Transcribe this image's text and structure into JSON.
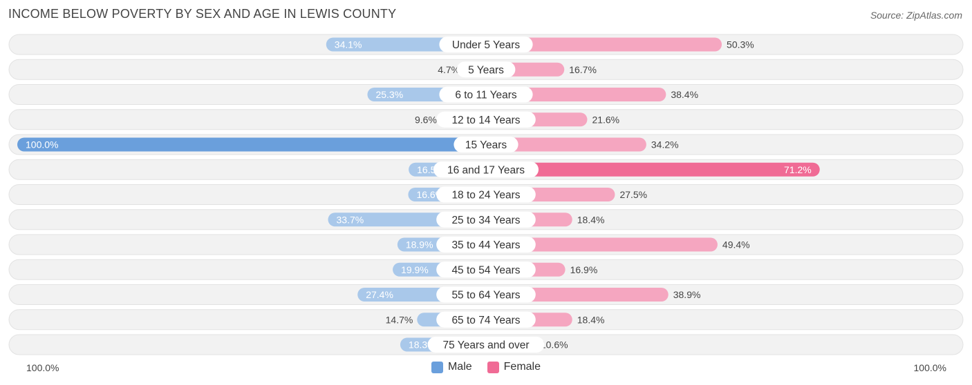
{
  "header": {
    "title": "INCOME BELOW POVERTY BY SEX AND AGE IN LEWIS COUNTY",
    "source": "Source: ZipAtlas.com"
  },
  "axis": {
    "left_label": "100.0%",
    "right_label": "100.0%"
  },
  "legend": {
    "male_label": "Male",
    "female_label": "Female"
  },
  "colors": {
    "male": "#6a9fdc",
    "male_light": "#a9c8ea",
    "female": "#f06b95",
    "female_light": "#f5a6c0",
    "row_bg": "#f2f2f2",
    "label_bg": "#ffffff"
  },
  "chart_data": {
    "type": "bar",
    "orientation": "horizontal-diverging",
    "categories": [
      "Under 5 Years",
      "5 Years",
      "6 to 11 Years",
      "12 to 14 Years",
      "15 Years",
      "16 and 17 Years",
      "18 to 24 Years",
      "25 to 34 Years",
      "35 to 44 Years",
      "45 to 54 Years",
      "55 to 64 Years",
      "65 to 74 Years",
      "75 Years and over"
    ],
    "series": [
      {
        "name": "Male",
        "values": [
          34.1,
          4.7,
          25.3,
          9.6,
          100.0,
          16.5,
          16.6,
          33.7,
          18.9,
          19.9,
          27.4,
          14.7,
          18.3
        ]
      },
      {
        "name": "Female",
        "values": [
          50.3,
          16.7,
          38.4,
          21.6,
          34.2,
          71.2,
          27.5,
          18.4,
          49.4,
          16.9,
          38.9,
          18.4,
          10.6
        ]
      }
    ],
    "value_labels": {
      "male": [
        "34.1%",
        "4.7%",
        "25.3%",
        "9.6%",
        "100.0%",
        "16.5%",
        "16.6%",
        "33.7%",
        "18.9%",
        "19.9%",
        "27.4%",
        "14.7%",
        "18.3%"
      ],
      "female": [
        "50.3%",
        "16.7%",
        "38.4%",
        "21.6%",
        "34.2%",
        "71.2%",
        "27.5%",
        "18.4%",
        "49.4%",
        "16.9%",
        "38.9%",
        "18.4%",
        "10.6%"
      ]
    },
    "xlim": [
      -100,
      100
    ]
  }
}
